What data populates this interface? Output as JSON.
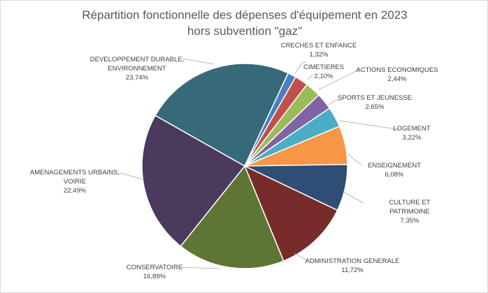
{
  "chart_data": {
    "type": "pie",
    "title": "Répartition fonctionnelle des dépenses d'équipement en 2023",
    "subtitle": "hors subvention \"gaz\"",
    "start_angle_deg": 25,
    "slices": [
      {
        "label": "CRECHES ET ENFANCE",
        "value": 1.32,
        "value_label": "1,32%",
        "color": "#4a7fc0"
      },
      {
        "label": "CIMETIERES",
        "value": 2.1,
        "value_label": "2,10%",
        "color": "#c0504d"
      },
      {
        "label": "ACTIONS ECONOMIQUES",
        "value": 2.44,
        "value_label": "2,44%",
        "color": "#9bbb59"
      },
      {
        "label": "SPORTS ET JEUNESSE",
        "value": 2.65,
        "value_label": "2,65%",
        "color": "#8064a2"
      },
      {
        "label": "LOGEMENT",
        "value": 3.22,
        "value_label": "3,22%",
        "color": "#4bacc6"
      },
      {
        "label": "ENSEIGNEMENT",
        "value": 6.08,
        "value_label": "6,08%",
        "color": "#f79646"
      },
      {
        "label": "CULTURE ET PATRIMOINE",
        "value": 7.35,
        "value_label": "7,35%",
        "color": "#2f4d75"
      },
      {
        "label": "ADMINISTRATION GENERALE",
        "value": 11.72,
        "value_label": "11,72%",
        "color": "#772c2a"
      },
      {
        "label": "CONSERVATOIRE",
        "value": 16.89,
        "value_label": "16,89%",
        "color": "#5f7535"
      },
      {
        "label": "AMENAGEMENTS URBAINS,\nVOIRIE",
        "value": 22.49,
        "value_label": "22,49%",
        "color": "#4a3a5e"
      },
      {
        "label": "DEVELOPPEMENT DURABLE,\nENVIRONNEMENT",
        "value": 23.74,
        "value_label": "23,74%",
        "color": "#366a7a"
      }
    ]
  }
}
